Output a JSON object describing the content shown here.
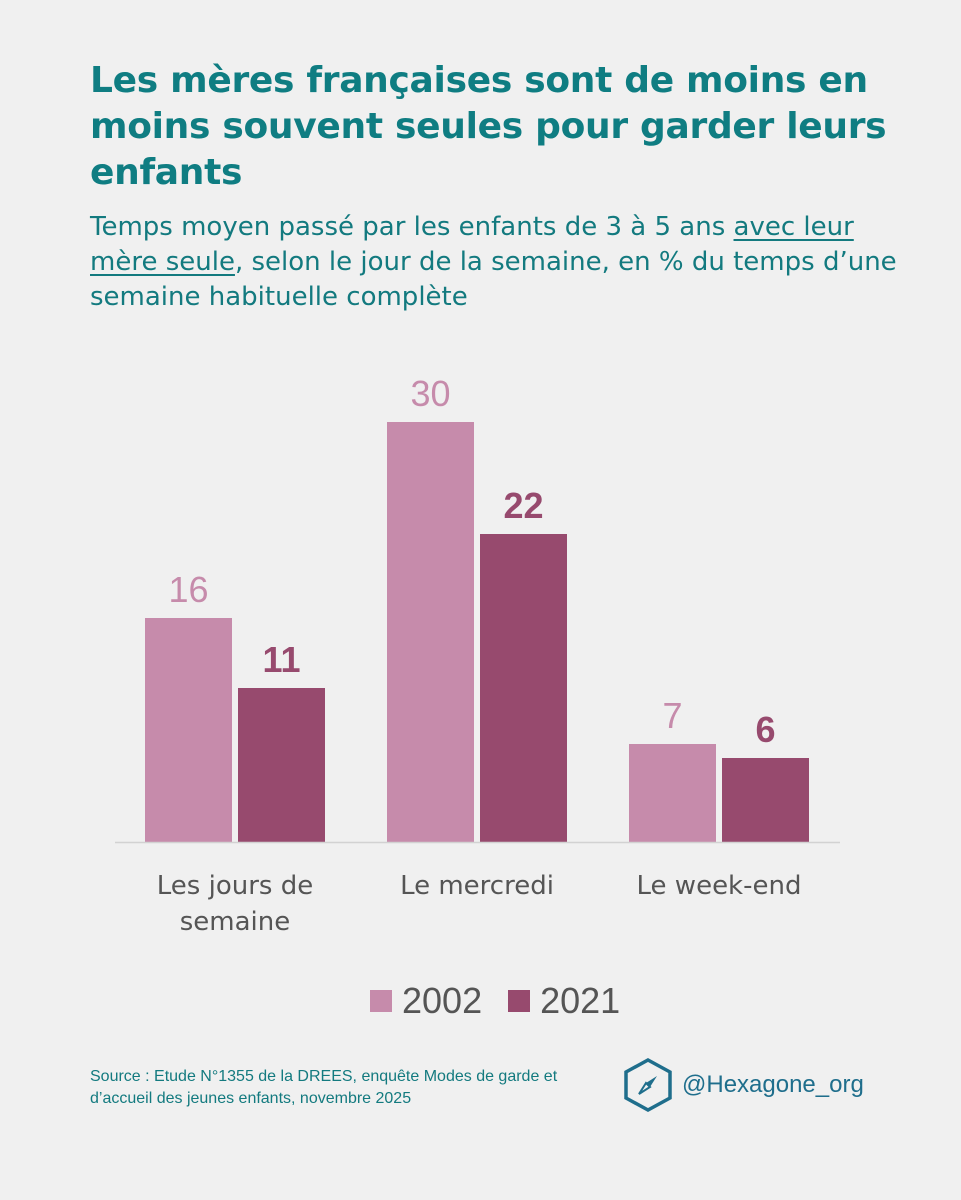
{
  "header": {
    "title": "Les mères françaises sont de moins en moins souvent seules pour garder leurs enfants",
    "subtitle_before": "Temps moyen passé par les enfants de 3 à 5 ans ",
    "subtitle_underlined": "avec leur mère seule",
    "subtitle_after": ", selon le jour de la semaine, en % du temps d’une semaine habituelle complète"
  },
  "chart_data": {
    "type": "bar",
    "title": "Les mères françaises sont de moins en moins souvent seules pour garder leurs enfants",
    "categories": [
      "Les jours de semaine",
      "Le mercredi",
      "Le week-end"
    ],
    "category_lines": [
      [
        "Les jours de",
        "semaine"
      ],
      [
        "Le mercredi"
      ],
      [
        "Le week-end"
      ]
    ],
    "series": [
      {
        "name": "2002",
        "values": [
          16,
          30,
          7
        ],
        "color": "#c68bab"
      },
      {
        "name": "2021",
        "values": [
          11,
          22,
          6
        ],
        "color": "#974a6e"
      }
    ],
    "ylim": [
      0,
      30
    ],
    "grid": false,
    "legend": "bottom",
    "xlabel": "",
    "ylabel": ""
  },
  "legend": {
    "item_2002": "2002",
    "item_2021": "2021"
  },
  "footer": {
    "source": "Source : Etude N°1355 de la DREES, enquête Modes de garde et d’accueil des jeunes enfants, novembre 2025",
    "handle": "@Hexagone_org",
    "logo_icon": "compass-hexagon-icon"
  },
  "colors": {
    "title": "#0f7d82",
    "series_2002": "#c68bab",
    "series_2021": "#974a6e",
    "background": "#f0f0f0"
  }
}
